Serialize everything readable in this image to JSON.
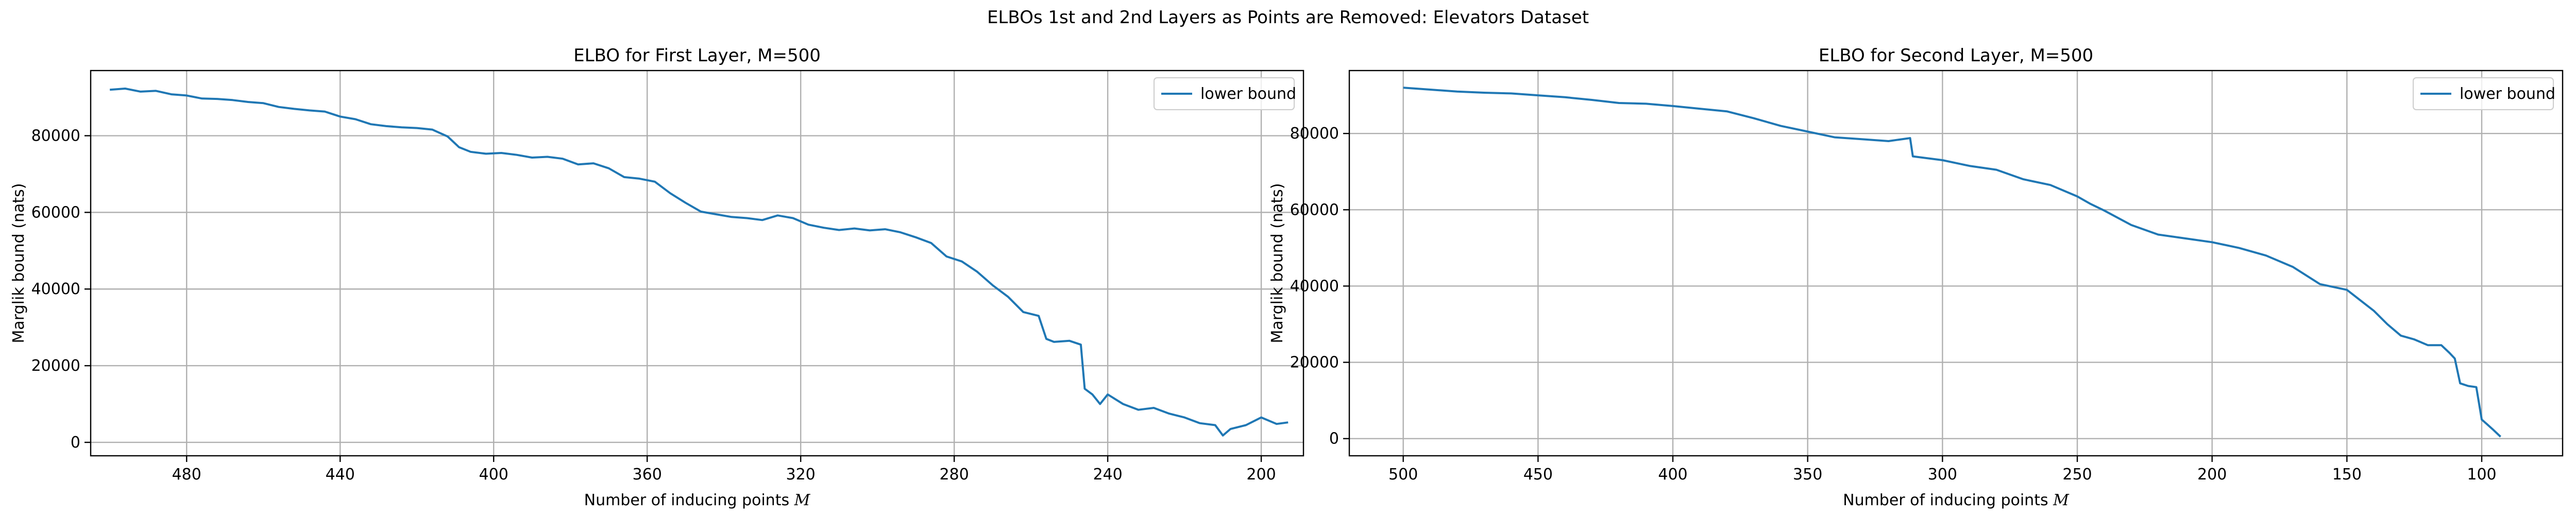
{
  "figure": {
    "suptitle": "ELBOs 1st and 2nd Layers as Points are Removed: Elevators Dataset"
  },
  "chart_data": [
    {
      "type": "line",
      "title": "ELBO for First Layer, M=500",
      "xlabel": "Number of inducing points ",
      "xlabel_math": "M",
      "ylabel": "Marglik bound (nats)",
      "x_reversed": true,
      "xlim": [
        505,
        189
      ],
      "ylim": [
        -3500,
        97000
      ],
      "xticks": [
        480,
        440,
        400,
        360,
        320,
        280,
        240,
        200
      ],
      "yticks": [
        0,
        20000,
        40000,
        60000,
        80000
      ],
      "grid": true,
      "legend_position": "top-right",
      "color": "#1f77b4",
      "series": [
        {
          "name": "lower bound",
          "x": [
            500,
            496,
            492,
            488,
            484,
            480,
            476,
            472,
            468,
            464,
            460,
            456,
            452,
            448,
            444,
            440,
            436,
            432,
            428,
            424,
            420,
            416,
            412,
            409,
            406,
            402,
            398,
            394,
            390,
            386,
            382,
            378,
            374,
            370,
            366,
            362,
            358,
            354,
            350,
            346,
            342,
            338,
            334,
            330,
            326,
            322,
            318,
            314,
            310,
            306,
            302,
            298,
            294,
            290,
            286,
            282,
            278,
            274,
            270,
            266,
            262,
            258,
            256,
            254,
            250,
            247,
            246,
            244,
            242,
            240,
            236,
            232,
            228,
            224,
            220,
            216,
            212,
            210,
            208,
            204,
            200,
            196,
            193
          ],
          "values": [
            92000,
            92300,
            91500,
            91700,
            90800,
            90500,
            89700,
            89600,
            89300,
            88800,
            88500,
            87500,
            87000,
            86600,
            86300,
            85000,
            84300,
            83000,
            82500,
            82200,
            82000,
            81600,
            79800,
            77000,
            75800,
            75300,
            75500,
            75000,
            74300,
            74500,
            74000,
            72500,
            72800,
            71500,
            69200,
            68800,
            68000,
            65000,
            62500,
            60200,
            59500,
            58800,
            58500,
            58000,
            59200,
            58500,
            56800,
            56000,
            55400,
            55800,
            55300,
            55600,
            54800,
            53500,
            52000,
            48500,
            47200,
            44500,
            41000,
            38000,
            34000,
            33000,
            27000,
            26200,
            26500,
            25500,
            14000,
            12500,
            10000,
            12500,
            10000,
            8500,
            9000,
            7500,
            6500,
            5000,
            4500,
            1800,
            3500,
            4500,
            6500,
            4800,
            5200
          ]
        }
      ]
    },
    {
      "type": "line",
      "title": "ELBO for Second Layer,  M=500",
      "xlabel": "Number of inducing points ",
      "xlabel_math": "M",
      "ylabel": "Marglik bound (nats)",
      "x_reversed": true,
      "xlim": [
        520,
        70
      ],
      "ylim": [
        -4500,
        96500
      ],
      "xticks": [
        500,
        450,
        400,
        350,
        300,
        250,
        200,
        150,
        100
      ],
      "yticks": [
        0,
        20000,
        40000,
        60000,
        80000
      ],
      "grid": true,
      "legend_position": "top-right",
      "color": "#1f77b4",
      "series": [
        {
          "name": "lower bound",
          "x": [
            500,
            490,
            480,
            470,
            460,
            450,
            440,
            430,
            420,
            410,
            400,
            390,
            380,
            370,
            360,
            350,
            340,
            330,
            320,
            312,
            311,
            300,
            290,
            280,
            270,
            260,
            250,
            245,
            240,
            230,
            220,
            210,
            200,
            190,
            180,
            170,
            160,
            150,
            140,
            135,
            130,
            125,
            120,
            115,
            112,
            110,
            108,
            105,
            102,
            100,
            96,
            93
          ],
          "values": [
            92000,
            91500,
            91000,
            90700,
            90500,
            90000,
            89500,
            88800,
            88000,
            87800,
            87200,
            86500,
            85800,
            84000,
            82000,
            80500,
            79000,
            78500,
            78000,
            78800,
            74000,
            73000,
            71500,
            70500,
            68000,
            66500,
            63500,
            61500,
            59800,
            56000,
            53500,
            52500,
            51500,
            50000,
            48000,
            45000,
            40500,
            39000,
            33500,
            30000,
            27000,
            26000,
            24500,
            24500,
            22500,
            21000,
            14500,
            13800,
            13500,
            5000,
            2500,
            500
          ]
        }
      ]
    }
  ]
}
